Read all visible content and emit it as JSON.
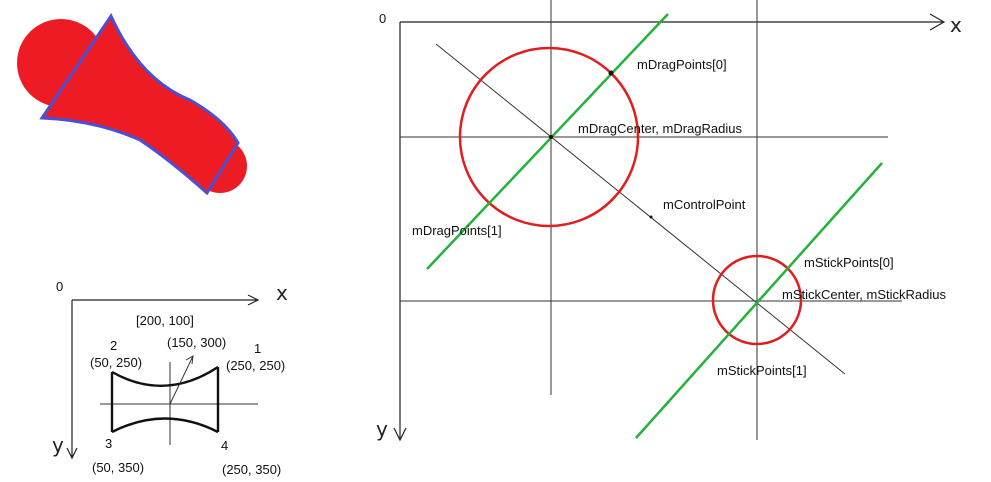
{
  "colors": {
    "shape_fill": "#ed1c24",
    "shape_outline": "#4a4fd6",
    "circle": "#e11d1d",
    "tangent": "#22b33a",
    "ink": "#111111"
  },
  "small_diagram": {
    "axis_origin_label": "0",
    "axis_x_label": "x",
    "axis_y_label": "y",
    "center_label": "[200, 100]",
    "control_label": "(150, 300)",
    "points": [
      {
        "num": "1",
        "coord": "(250, 250)"
      },
      {
        "num": "2",
        "coord": "(50, 250)"
      },
      {
        "num": "3",
        "coord": "(50, 350)"
      },
      {
        "num": "4",
        "coord": "(250, 350)"
      }
    ]
  },
  "large_diagram": {
    "axis_origin_label": "0",
    "axis_x_label": "x",
    "axis_y_label": "y",
    "labels": {
      "drag_point_0": "mDragPoints[0]",
      "drag_center": "mDragCenter, mDragRadius",
      "control_point": "mControlPoint",
      "drag_point_1": "mDragPoints[1]",
      "stick_point_0": "mStickPoints[0]",
      "stick_center": "mStickCenter, mStickRadius",
      "stick_point_1": "mStickPoints[1]"
    }
  }
}
